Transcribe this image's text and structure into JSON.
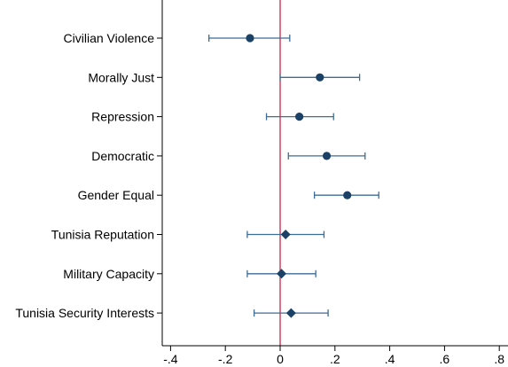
{
  "chart_data": {
    "type": "scatter",
    "subtype": "coefficient-plot",
    "title": "",
    "xlabel": "",
    "ylabel": "",
    "xlim": [
      -0.42,
      0.82
    ],
    "x_ticks": [
      -0.4,
      -0.2,
      0,
      0.2,
      0.4,
      0.6,
      0.8
    ],
    "x_tick_labels": [
      "-.4",
      "-.2",
      "0",
      ".2",
      ".4",
      ".6",
      ".8"
    ],
    "reference_line_x": 0,
    "colors": {
      "marker": "#1b4266",
      "error_bar": "#3d6c94",
      "reference_line": "#c0143c",
      "axis": "#000000"
    },
    "categories": [
      "Civilian Violence",
      "Morally Just",
      "Repression",
      "Democratic",
      "Gender Equal",
      "Tunisia Reputation",
      "Military Capacity",
      "Tunisia Security Interests"
    ],
    "points": [
      {
        "label": "Civilian Violence",
        "estimate": -0.11,
        "lower": -0.26,
        "upper": 0.035,
        "marker": "circle"
      },
      {
        "label": "Morally Just",
        "estimate": 0.145,
        "lower": 0.0,
        "upper": 0.29,
        "marker": "circle"
      },
      {
        "label": "Repression",
        "estimate": 0.07,
        "lower": -0.05,
        "upper": 0.195,
        "marker": "circle"
      },
      {
        "label": "Democratic",
        "estimate": 0.17,
        "lower": 0.03,
        "upper": 0.31,
        "marker": "circle"
      },
      {
        "label": "Gender Equal",
        "estimate": 0.245,
        "lower": 0.125,
        "upper": 0.36,
        "marker": "circle"
      },
      {
        "label": "Tunisia Reputation",
        "estimate": 0.02,
        "lower": -0.12,
        "upper": 0.16,
        "marker": "diamond"
      },
      {
        "label": "Military Capacity",
        "estimate": 0.005,
        "lower": -0.12,
        "upper": 0.13,
        "marker": "diamond"
      },
      {
        "label": "Tunisia Security Interests",
        "estimate": 0.04,
        "lower": -0.095,
        "upper": 0.175,
        "marker": "diamond"
      }
    ]
  }
}
